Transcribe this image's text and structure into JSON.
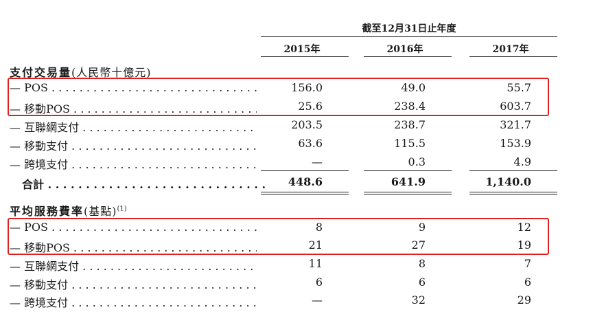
{
  "header": {
    "period": "截至12月31日止年度",
    "years": [
      "2015年",
      "2016年",
      "2017年"
    ]
  },
  "volume": {
    "title": "支付交易量",
    "unit": "(人民幣十億元)",
    "rows": [
      {
        "label": "— POS",
        "values": [
          "156.0",
          "49.0",
          "55.7"
        ]
      },
      {
        "label": "— 移動POS",
        "values": [
          "25.6",
          "238.4",
          "603.7"
        ]
      },
      {
        "label": "— 互聯網支付",
        "values": [
          "203.5",
          "238.7",
          "321.7"
        ]
      },
      {
        "label": "— 移動支付",
        "values": [
          "63.6",
          "115.5",
          "153.9"
        ]
      },
      {
        "label": "— 跨境支付",
        "values": [
          "—",
          "0.3",
          "4.9"
        ]
      }
    ],
    "total": {
      "label": "合計",
      "values": [
        "448.6",
        "641.9",
        "1,140.0"
      ]
    }
  },
  "fee": {
    "title": "平均服務費率",
    "unit": "(基點)",
    "note": "(1)",
    "rows": [
      {
        "label": "— POS",
        "values": [
          "8",
          "9",
          "12"
        ]
      },
      {
        "label": "— 移動POS",
        "values": [
          "21",
          "27",
          "19"
        ]
      },
      {
        "label": "— 互聯網支付",
        "values": [
          "11",
          "8",
          "7"
        ]
      },
      {
        "label": "— 移動支付",
        "values": [
          "6",
          "6",
          "6"
        ]
      },
      {
        "label": "— 跨境支付",
        "values": [
          "—",
          "32",
          "29"
        ]
      }
    ]
  }
}
